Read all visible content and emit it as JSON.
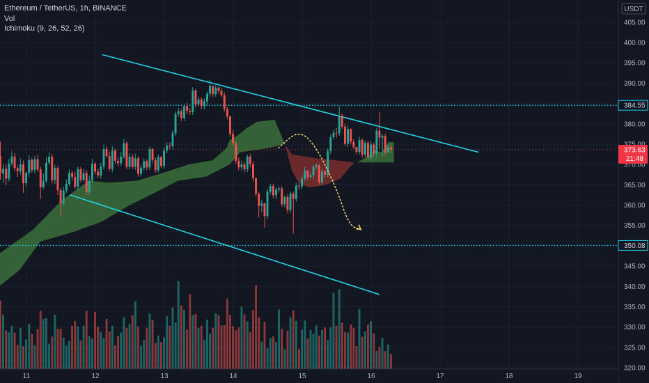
{
  "legend": {
    "symbol": "Ethereum / TetherUS, 1h, BINANCE",
    "vol": "Vol",
    "ichimoku": "Ichimoku (9, 26, 52, 26)"
  },
  "colors": {
    "background": "#131722",
    "up": "#26a69a",
    "down": "#ef5350",
    "trend_channel": "#22d3e6",
    "level_line": "#1ed3e8",
    "cloud_bull": "#3c6e3b",
    "cloud_bear": "#7a2e2e",
    "projection": "#f5d76e",
    "price_badge": "#f23645"
  },
  "chart_data": {
    "type": "candlestick",
    "title": "Ethereum / TetherUS, 1h, BINANCE",
    "currency_label": "USDT",
    "y_ticks": [
      "405.00",
      "400.00",
      "395.00",
      "390.00",
      "385.00",
      "380.00",
      "375.00",
      "370.00",
      "365.00",
      "360.00",
      "355.00",
      "350.00",
      "345.00",
      "340.00",
      "335.00",
      "330.00",
      "325.00",
      "320.00"
    ],
    "y_range": [
      320,
      406
    ],
    "x_ticks": [
      "11",
      "12",
      "13",
      "14",
      "15",
      "16",
      "17",
      "18",
      "19"
    ],
    "x_range_days": [
      10.6,
      19.9
    ],
    "levels": [
      {
        "label": "384.55",
        "value": 384.55
      },
      {
        "label": "350.08",
        "value": 350.08
      }
    ],
    "last_price": {
      "label": "373.63",
      "value": 373.63,
      "countdown": "21:48"
    },
    "trend_lines": [
      {
        "start": {
          "day": 12.1,
          "price": 397.0
        },
        "end": {
          "day": 17.56,
          "price": 373.0
        }
      },
      {
        "start": {
          "day": 11.63,
          "price": 362.5
        },
        "end": {
          "day": 16.12,
          "price": 338.0
        }
      }
    ],
    "projection_arrow": {
      "points": [
        [
          14.65,
          374.0
        ],
        [
          14.95,
          378.5
        ],
        [
          15.2,
          374.5
        ],
        [
          15.5,
          364.0
        ],
        [
          15.68,
          355.0
        ],
        [
          15.85,
          354.0
        ]
      ]
    },
    "cloud_sections": [
      {
        "color": "bull",
        "upper": [
          [
            10.6,
            348.0
          ],
          [
            11.1,
            354.0
          ],
          [
            11.5,
            361.0
          ],
          [
            11.9,
            366.0
          ],
          [
            12.2,
            365.5
          ],
          [
            12.6,
            366.0
          ],
          [
            13.0,
            368.0
          ],
          [
            13.35,
            370.0
          ],
          [
            13.7,
            371.0
          ],
          [
            13.9,
            374.0
          ],
          [
            13.95,
            376.0
          ],
          [
            14.05,
            377.0
          ],
          [
            14.2,
            379.0
          ],
          [
            14.35,
            380.5
          ],
          [
            14.6,
            381.0
          ],
          [
            14.75,
            375.0
          ]
        ],
        "lower": [
          [
            14.75,
            375.0
          ],
          [
            14.5,
            374.0
          ],
          [
            14.3,
            373.5
          ],
          [
            14.1,
            373.0
          ],
          [
            13.95,
            370.0
          ],
          [
            13.6,
            367.0
          ],
          [
            13.2,
            366.0
          ],
          [
            12.8,
            362.5
          ],
          [
            12.5,
            360.0
          ],
          [
            12.1,
            356.0
          ],
          [
            11.7,
            353.5
          ],
          [
            11.2,
            351.0
          ],
          [
            10.9,
            344.0
          ],
          [
            10.6,
            340.0
          ]
        ]
      },
      {
        "color": "bear",
        "upper": [
          [
            14.75,
            375.0
          ],
          [
            14.85,
            372.5
          ],
          [
            15.2,
            371.5
          ],
          [
            15.5,
            371.0
          ],
          [
            15.75,
            370.5
          ]
        ],
        "lower": [
          [
            15.75,
            370.5
          ],
          [
            15.55,
            366.5
          ],
          [
            15.35,
            365.0
          ],
          [
            15.1,
            364.3
          ],
          [
            14.95,
            365.5
          ],
          [
            14.85,
            368.5
          ],
          [
            14.75,
            375.0
          ]
        ]
      },
      {
        "color": "bull",
        "upper": [
          [
            15.8,
            370.5
          ],
          [
            15.95,
            372.0
          ],
          [
            16.05,
            373.5
          ],
          [
            16.15,
            373.0
          ],
          [
            16.25,
            375.5
          ],
          [
            16.33,
            375.5
          ]
        ],
        "lower": [
          [
            16.33,
            370.5
          ],
          [
            15.8,
            370.5
          ]
        ]
      }
    ],
    "candles_start_day": 10.6,
    "candle_interval_hours": 1,
    "close": [
      367.8,
      368.9,
      366.5,
      370.2,
      371.9,
      369.1,
      368.3,
      370.0,
      365.4,
      367.9,
      371.1,
      368.6,
      371.3,
      368.8,
      364.4,
      366.0,
      370.4,
      371.9,
      366.1,
      369.1,
      363.7,
      360.5,
      363.6,
      365.2,
      367.9,
      366.9,
      364.5,
      368.8,
      366.2,
      367.9,
      363.2,
      366.0,
      370.2,
      368.2,
      367.3,
      369.5,
      373.8,
      372.1,
      368.9,
      373.4,
      370.9,
      370.3,
      371.9,
      375.2,
      369.4,
      371.9,
      369.4,
      371.5,
      367.7,
      369.2,
      370.8,
      369.3,
      373.8,
      371.1,
      368.6,
      371.8,
      369.6,
      373.4,
      374.7,
      374.5,
      377.7,
      382.4,
      383.1,
      381.4,
      384.4,
      383.2,
      382.9,
      388.2,
      384.8,
      386.0,
      384.3,
      385.5,
      387.4,
      389.3,
      387.3,
      388.9,
      388.1,
      387.0,
      383.7,
      381.8,
      377.5,
      375.3,
      370.9,
      369.3,
      370.0,
      368.8,
      371.9,
      370.1,
      366.6,
      362.8,
      359.8,
      360.4,
      357.3,
      363.3,
      364.7,
      362.4,
      363.8,
      364.1,
      360.2,
      362.0,
      358.8,
      362.8,
      361.5,
      364.8,
      364.6,
      366.5,
      368.5,
      366.9,
      367.4,
      369.4,
      369.8,
      365.6,
      368.3,
      367.5,
      373.3,
      376.7,
      377.8,
      377.7,
      382.0,
      379.3,
      375.1,
      378.7,
      375.6,
      374.3,
      373.1,
      376.0,
      372.4,
      375.3,
      371.7,
      374.9,
      372.7,
      378.3,
      376.6,
      377.0,
      372.9,
      374.2,
      373.6
    ],
    "open": [
      372.0,
      367.8,
      368.9,
      366.5,
      370.2,
      371.9,
      369.1,
      368.3,
      370.0,
      365.4,
      367.9,
      371.1,
      368.6,
      371.3,
      368.8,
      364.4,
      366.0,
      370.4,
      371.9,
      366.1,
      369.1,
      363.7,
      360.5,
      363.6,
      365.2,
      367.9,
      366.9,
      364.5,
      368.8,
      366.2,
      367.9,
      363.2,
      366.0,
      370.2,
      368.2,
      367.3,
      369.5,
      373.8,
      372.1,
      368.9,
      373.4,
      370.9,
      370.3,
      371.9,
      375.2,
      369.4,
      371.9,
      369.4,
      371.5,
      367.7,
      369.2,
      370.8,
      369.3,
      373.8,
      371.1,
      368.6,
      371.8,
      369.6,
      373.4,
      374.7,
      374.5,
      377.7,
      382.4,
      383.1,
      381.4,
      384.4,
      383.2,
      382.9,
      388.2,
      384.8,
      386.0,
      384.3,
      385.5,
      387.4,
      389.3,
      387.3,
      388.9,
      388.1,
      387.0,
      383.7,
      381.8,
      377.5,
      375.3,
      370.9,
      369.3,
      370.0,
      368.8,
      371.9,
      370.1,
      366.6,
      362.8,
      359.8,
      360.4,
      357.3,
      363.3,
      364.7,
      362.4,
      363.8,
      364.1,
      360.2,
      362.0,
      358.8,
      362.8,
      361.5,
      364.8,
      364.6,
      366.5,
      368.5,
      366.9,
      367.4,
      369.4,
      369.8,
      365.6,
      368.3,
      367.5,
      373.3,
      376.7,
      377.8,
      377.7,
      382.0,
      379.3,
      375.1,
      378.7,
      375.6,
      374.3,
      373.1,
      376.0,
      372.4,
      375.3,
      371.7,
      374.9,
      372.7,
      378.3,
      376.6,
      377.0,
      372.9,
      374.2
    ],
    "high": [
      375.6,
      370.1,
      369.9,
      371.4,
      373.2,
      372.8,
      369.7,
      371.5,
      371.0,
      368.2,
      372.3,
      371.6,
      372.1,
      372.4,
      369.4,
      367.8,
      371.8,
      373.0,
      372.6,
      369.9,
      369.6,
      364.2,
      364.5,
      366.3,
      368.8,
      368.5,
      368.2,
      369.5,
      369.4,
      368.9,
      368.6,
      367.2,
      371.4,
      370.6,
      369.0,
      370.4,
      374.9,
      374.6,
      373.1,
      374.5,
      373.9,
      371.8,
      373.0,
      376.3,
      375.7,
      372.8,
      372.5,
      372.6,
      372.0,
      369.8,
      371.5,
      371.3,
      374.4,
      374.1,
      371.7,
      372.4,
      372.1,
      374.2,
      375.5,
      375.4,
      378.4,
      383.1,
      383.8,
      383.7,
      384.9,
      385.1,
      383.9,
      389.0,
      388.6,
      386.7,
      386.5,
      386.3,
      388.0,
      390.8,
      389.5,
      389.5,
      389.1,
      388.8,
      387.7,
      384.2,
      382.0,
      378.5,
      375.7,
      371.7,
      371.0,
      370.6,
      372.4,
      372.6,
      370.8,
      366.8,
      363.2,
      361.2,
      360.6,
      364.0,
      365.3,
      365.3,
      364.4,
      364.6,
      364.7,
      362.4,
      362.8,
      363.3,
      363.3,
      365.5,
      365.6,
      367.1,
      369.3,
      368.7,
      368.0,
      369.9,
      370.3,
      370.2,
      368.9,
      368.6,
      374.0,
      377.4,
      378.6,
      379.0,
      384.4,
      382.6,
      380.1,
      379.6,
      378.9,
      376.2,
      374.1,
      376.8,
      376.4,
      375.9,
      375.8,
      375.7,
      375.3,
      379.0,
      382.9,
      377.5,
      377.6,
      374.8,
      374.9
    ],
    "low": [
      366.2,
      365.5,
      364.9,
      365.8,
      369.7,
      368.3,
      366.9,
      367.5,
      363.0,
      364.6,
      366.9,
      368.0,
      367.8,
      368.2,
      361.5,
      363.9,
      365.5,
      369.9,
      365.3,
      365.2,
      362.5,
      357.0,
      359.9,
      363.0,
      364.7,
      366.1,
      363.9,
      363.6,
      365.5,
      365.7,
      362.4,
      362.6,
      365.4,
      367.5,
      366.7,
      366.5,
      368.8,
      371.6,
      368.4,
      368.1,
      370.2,
      369.5,
      369.6,
      371.4,
      368.9,
      368.8,
      368.9,
      368.6,
      367.0,
      367.0,
      368.4,
      368.6,
      368.6,
      370.3,
      367.9,
      368.0,
      369.0,
      369.0,
      372.7,
      373.7,
      373.7,
      377.0,
      381.7,
      380.7,
      380.7,
      382.4,
      382.2,
      382.2,
      384.0,
      384.3,
      383.6,
      383.5,
      384.6,
      386.7,
      386.6,
      386.6,
      387.4,
      386.5,
      383.0,
      381.1,
      376.8,
      374.6,
      370.2,
      368.6,
      368.5,
      368.1,
      368.1,
      369.4,
      365.8,
      362.1,
      357.0,
      358.3,
      354.5,
      356.6,
      362.6,
      361.7,
      361.5,
      363.1,
      359.6,
      359.4,
      358.0,
      358.2,
      353.0,
      360.8,
      363.8,
      364.0,
      365.9,
      366.1,
      366.7,
      366.5,
      368.7,
      365.0,
      364.8,
      366.7,
      366.8,
      372.6,
      376.1,
      376.6,
      377.0,
      378.7,
      374.5,
      374.3,
      374.9,
      373.8,
      372.5,
      372.4,
      371.6,
      371.7,
      371.1,
      371.0,
      371.9,
      371.9,
      373.8,
      372.0,
      372.3,
      373.3,
      372.7
    ],
    "volume": [
      336.5,
      333.0,
      329.2,
      328.7,
      330.3,
      328.6,
      325.6,
      329.8,
      325.3,
      327.0,
      330.8,
      328.3,
      325.5,
      329.5,
      334.0,
      332.0,
      332.2,
      325.9,
      327.6,
      333.0,
      329.5,
      329.6,
      327.4,
      325.5,
      326.6,
      330.3,
      331.5,
      330.1,
      326.7,
      330.3,
      334.0,
      327.8,
      327.1,
      333.7,
      330.1,
      328.8,
      327.3,
      332.0,
      328.9,
      330.3,
      325.5,
      327.8,
      328.6,
      332.4,
      329.8,
      330.8,
      332.9,
      336.3,
      330.1,
      325.4,
      326.8,
      329.8,
      333.3,
      331.8,
      326.1,
      327.9,
      326.3,
      327.5,
      332.7,
      330.3,
      334.8,
      331.1,
      341.3,
      335.3,
      334.2,
      329.4,
      338.1,
      332.9,
      333.2,
      329.8,
      330.3,
      326.9,
      331.8,
      328.4,
      329.8,
      333.4,
      332.9,
      330.4,
      330.5,
      337.0,
      333.0,
      330.2,
      329.2,
      329.9,
      335.0,
      333.1,
      331.4,
      328.8,
      334.2,
      340.3,
      332.4,
      326.4,
      331.3,
      324.8,
      327.3,
      327.7,
      326.3,
      334.3,
      329.6,
      324.5,
      329.1,
      332.4,
      334.1,
      331.5,
      324.6,
      329.4,
      331.6,
      327.2,
      329.3,
      328.3,
      330.4,
      327.9,
      329.3,
      329.9,
      326.8,
      329.9,
      338.4,
      330.3,
      339.3,
      331.1,
      328.8,
      328.6,
      330.6,
      329.8,
      325.3,
      334.4,
      327.6,
      328.9,
      330.6,
      331.4,
      328.5,
      324.1,
      325.1,
      327.3,
      324.1,
      325.7,
      323.4
    ]
  }
}
